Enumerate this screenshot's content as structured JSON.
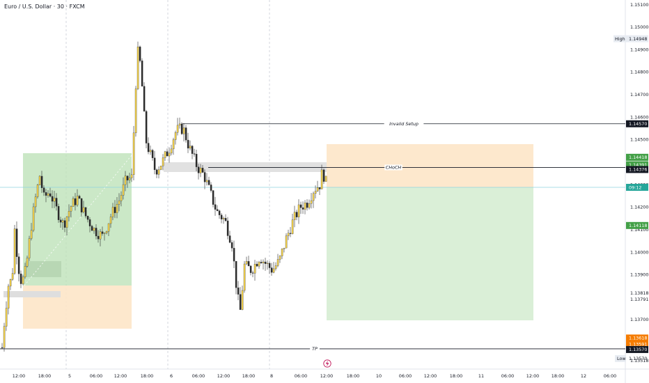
{
  "header": {
    "title": "Euro / U.S. Dollar · 30 · FXCM"
  },
  "price_axis": {
    "labels": [
      "1.15100",
      "1.15000",
      "1.14900",
      "1.14800",
      "1.14700",
      "1.14600",
      "1.14500",
      "1.14300",
      "1.14200",
      "1.14100",
      "1.14000",
      "1.13900",
      "1.13818",
      "1.13791",
      "1.13700",
      "1.13518"
    ],
    "high_tag": {
      "label": "High",
      "value": "1.14948"
    },
    "low_tag": {
      "label": "Low",
      "value": "1.13570"
    },
    "tags": [
      {
        "value": "1.14570",
        "color": "#131722"
      },
      {
        "value": "1.14418",
        "color": "#43a047"
      },
      {
        "value": "1.14391",
        "color": "#43a047"
      },
      {
        "value": "1.14376",
        "color": "#131722"
      },
      {
        "value": "09:12",
        "color": "#26a69a"
      },
      {
        "value": "1.14118",
        "color": "#43a047"
      },
      {
        "value": "1.13618",
        "color": "#f57c00"
      },
      {
        "value": "1.13591",
        "color": "#f57c00"
      },
      {
        "value": "1.13570",
        "color": "#131722"
      }
    ]
  },
  "time_axis": {
    "labels": [
      "12:00",
      "18:00",
      "5",
      "06:00",
      "12:00",
      "18:00",
      "6",
      "06:00",
      "12:00",
      "18:00",
      "8",
      "06:00",
      "12:00",
      "18:00",
      "10",
      "06:00",
      "12:00",
      "18:00",
      "11",
      "06:00",
      "12:00",
      "18:00",
      "12",
      "06:00"
    ]
  },
  "annotations": {
    "invalid_setup": "Invalid Setup",
    "choch": "CHoCH",
    "tp": "TP"
  },
  "icons": {
    "flash": "lightning-icon"
  },
  "colors": {
    "bull": "#f2d04a",
    "bear": "#2b2b2b",
    "green_zone": "#b9e0b4",
    "orange_zone": "#fde6c8",
    "grey_zone": "#dedede",
    "cyan_line": "#8fd3df"
  },
  "chart_data": {
    "type": "candlestick",
    "symbol": "Euro / U.S. Dollar · 30 · FXCM",
    "y_range": [
      1.1348,
      1.1512
    ],
    "series": [
      {
        "x": "Thu 12:00",
        "close": 1.1366
      },
      {
        "x": "Thu 18:00",
        "close": 1.1428
      },
      {
        "x": "Fri 00:00",
        "close": 1.142
      },
      {
        "x": "Fri 06:00",
        "close": 1.1412
      },
      {
        "x": "Fri 12:00",
        "close": 1.1422
      },
      {
        "x": "Fri 16:00",
        "close": 1.1494
      },
      {
        "x": "Fri 18:00",
        "close": 1.145
      },
      {
        "x": "Mon 00:00",
        "close": 1.1455
      },
      {
        "x": "Mon 06:00",
        "close": 1.1433
      },
      {
        "x": "Mon 12:00",
        "close": 1.1395
      },
      {
        "x": "Mon 14:00",
        "close": 1.1378
      },
      {
        "x": "Mon 18:00",
        "close": 1.1398
      },
      {
        "x": "Tue 00:00",
        "close": 1.14
      },
      {
        "x": "Tue 06:00",
        "close": 1.1418
      },
      {
        "x": "Tue 09:12",
        "close": 1.143
      }
    ],
    "levels": [
      {
        "name": "Invalid Setup",
        "value": 1.1457
      },
      {
        "name": "CHoCH",
        "value": 1.14376
      },
      {
        "name": "TP",
        "value": 1.1357
      }
    ],
    "high": 1.14948,
    "low": 1.1357
  }
}
